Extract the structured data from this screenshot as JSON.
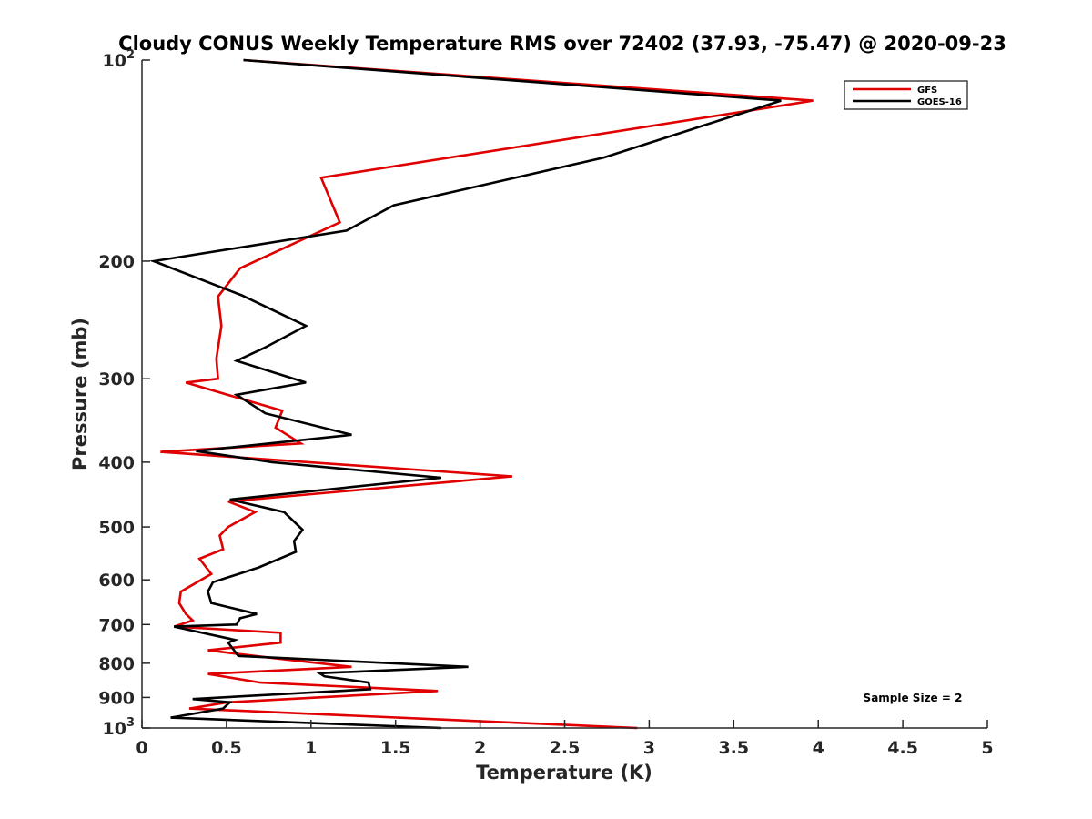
{
  "chart_data": {
    "type": "line",
    "title": "Cloudy CONUS Weekly Temperature RMS over 72402 (37.93, -75.47) @ 2020-09-23",
    "xlabel": "Temperature (K)",
    "ylabel": "Pressure (mb)",
    "xlim": [
      0,
      5
    ],
    "ylim": [
      100,
      1000
    ],
    "y_scale": "log",
    "y_reversed": true,
    "x_ticks": [
      0,
      0.5,
      1,
      1.5,
      2,
      2.5,
      3,
      3.5,
      4,
      4.5,
      5
    ],
    "x_tick_labels": [
      "0",
      "0.5",
      "1",
      "1.5",
      "2",
      "2.5",
      "3",
      "3.5",
      "4",
      "4.5",
      "5"
    ],
    "y_ticks": [
      {
        "value": 100,
        "base": "10",
        "exp": "2"
      },
      {
        "value": 200,
        "label": "200"
      },
      {
        "value": 300,
        "label": "300"
      },
      {
        "value": 400,
        "label": "400"
      },
      {
        "value": 500,
        "label": "500"
      },
      {
        "value": 600,
        "label": "600"
      },
      {
        "value": 700,
        "label": "700"
      },
      {
        "value": 800,
        "label": "800"
      },
      {
        "value": 900,
        "label": "900"
      },
      {
        "value": 1000,
        "base": "10",
        "exp": "3"
      }
    ],
    "grid": false,
    "legend_position": "top-right",
    "annotation": "Sample Size = 2",
    "series": [
      {
        "name": "GFS",
        "color": "#e00000",
        "x": [
          0.6,
          3.97,
          1.06,
          1.17,
          0.58,
          0.45,
          0.47,
          0.44,
          0.45,
          0.26,
          0.83,
          0.79,
          0.94,
          0.11,
          2.19,
          0.51,
          0.67,
          0.51,
          0.46,
          0.48,
          0.34,
          0.41,
          0.23,
          0.22,
          0.26,
          0.3,
          0.19,
          0.82,
          0.82,
          0.39,
          0.76,
          1.24,
          0.39,
          0.7,
          1.75,
          0.51,
          0.28,
          2.93
        ],
        "y": [
          100,
          115,
          150,
          175,
          205,
          226,
          250,
          280,
          300,
          304,
          335,
          355,
          375,
          386,
          420,
          458,
          475,
          500,
          515,
          540,
          558,
          588,
          625,
          650,
          675,
          690,
          705,
          720,
          745,
          765,
          785,
          810,
          830,
          855,
          880,
          915,
          935,
          1000
        ]
      },
      {
        "name": "GOES-16",
        "color": "#000000",
        "x": [
          0.6,
          3.78,
          2.73,
          1.49,
          1.21,
          0.07,
          0.59,
          0.97,
          0.72,
          0.56,
          0.97,
          0.56,
          0.73,
          1.24,
          0.32,
          0.77,
          1.77,
          0.52,
          0.84,
          0.95,
          0.9,
          0.91,
          0.69,
          0.42,
          0.39,
          0.41,
          0.68,
          0.58,
          0.56,
          0.19,
          0.55,
          0.51,
          0.57,
          1.93,
          1.05,
          1.08,
          1.34,
          1.35,
          0.3,
          0.52,
          0.48,
          0.17,
          1.77
        ],
        "y": [
          100,
          115,
          140,
          165,
          180,
          200,
          225,
          250,
          270,
          282,
          304,
          317,
          338,
          364,
          385,
          400,
          422,
          455,
          475,
          505,
          525,
          545,
          575,
          605,
          625,
          650,
          675,
          685,
          700,
          705,
          738,
          745,
          780,
          810,
          828,
          837,
          855,
          875,
          905,
          915,
          935,
          965,
          1000
        ]
      }
    ]
  }
}
